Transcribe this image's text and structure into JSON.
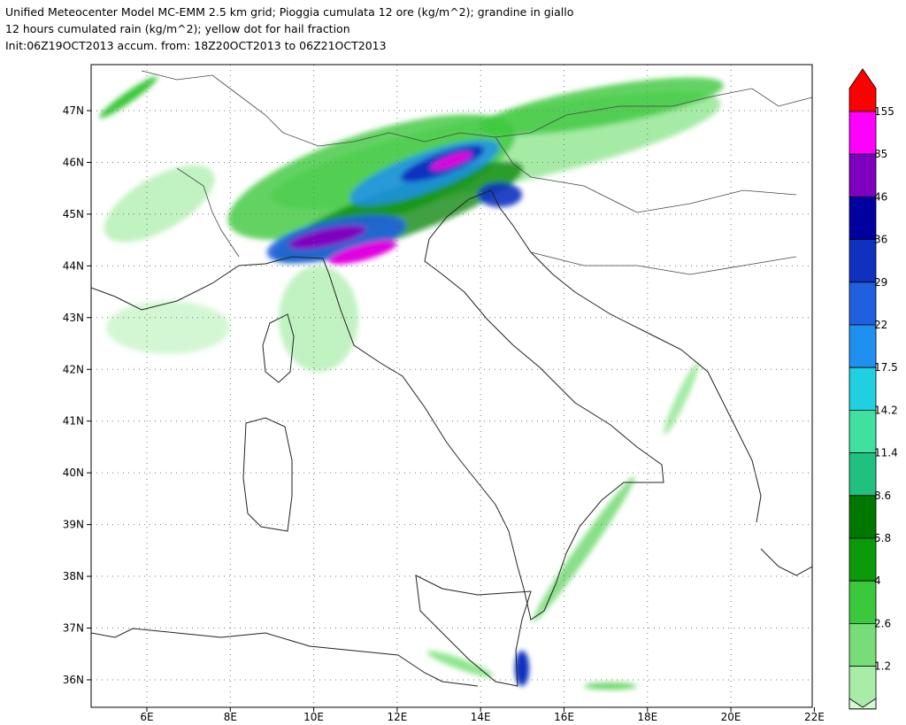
{
  "header": {
    "lines": [
      "Unified Meteocenter Model MC-EMM 2.5 km grid; Pioggia cumulata 12 ore (kg/m^2); grandine in giallo",
      "12 hours cumulated rain (kg/m^2); yellow dot for hail fraction",
      "Init:06Z19OCT2013 accum. from: 18Z20OCT2013 to 06Z21OCT2013"
    ]
  },
  "axes": {
    "x_ticks": [
      "6E",
      "8E",
      "10E",
      "12E",
      "14E",
      "16E",
      "18E",
      "20E",
      "22E"
    ],
    "y_ticks": [
      "47N",
      "46N",
      "45N",
      "44N",
      "43N",
      "42N",
      "41N",
      "40N",
      "39N",
      "38N",
      "37N",
      "36N"
    ]
  },
  "colorbar": {
    "labels": [
      "155",
      "85",
      "46",
      "36",
      "29",
      "22",
      "17.5",
      "14.2",
      "11.4",
      "8.6",
      "5.8",
      "4",
      "2.6",
      "1.2"
    ]
  }
}
